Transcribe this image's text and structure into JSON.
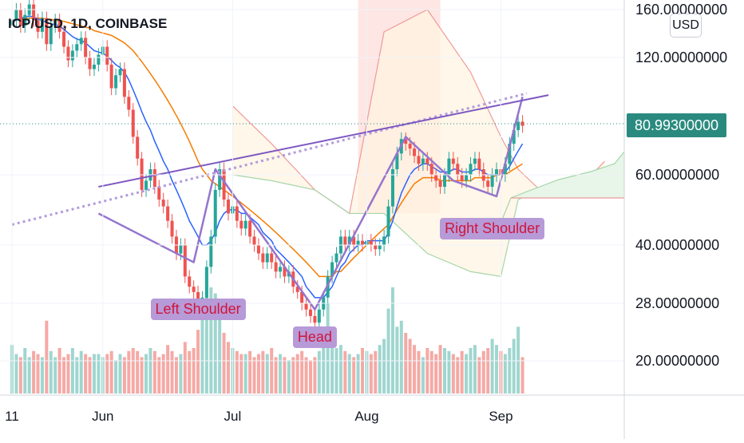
{
  "header": {
    "title": "ICP/USD, 1D, COINBASE"
  },
  "currency_button": {
    "label": "USD"
  },
  "current_price": {
    "label": "80.99300000",
    "value": 80.993
  },
  "colors": {
    "up": "#26a69a",
    "down": "#ef5350",
    "ma_fast": "#2962ff",
    "ma_slow": "#f57c00",
    "pattern": "#9575cd",
    "neckline": "#7e57c2",
    "cloud_green": "#a5d6a7",
    "cloud_red": "#ef9a9a"
  },
  "chart_data": {
    "type": "candlestick",
    "yscale": "log",
    "ylim": [
      15,
      170
    ],
    "y_ticks": [
      {
        "value": 160,
        "label": "160.00000000"
      },
      {
        "value": 120,
        "label": "120.00000000"
      },
      {
        "value": 60,
        "label": "60.00000000"
      },
      {
        "value": 40,
        "label": "40.00000000"
      },
      {
        "value": 28,
        "label": "28.00000000"
      },
      {
        "value": 20,
        "label": "20.00000000"
      }
    ],
    "x_ticks": [
      "11",
      "Jun",
      "Jul",
      "Aug",
      "Sep"
    ],
    "candles": {
      "x": [
        "2021-05-11",
        "2021-05-12",
        "2021-05-13",
        "2021-05-14",
        "2021-05-15",
        "2021-05-16",
        "2021-05-17",
        "2021-05-18",
        "2021-05-19",
        "2021-05-20",
        "2021-05-21",
        "2021-05-22",
        "2021-05-23",
        "2021-05-24",
        "2021-05-25",
        "2021-05-26",
        "2021-05-27",
        "2021-05-28",
        "2021-05-29",
        "2021-05-30",
        "2021-05-31",
        "2021-06-01",
        "2021-06-02",
        "2021-06-03",
        "2021-06-04",
        "2021-06-05",
        "2021-06-06",
        "2021-06-07",
        "2021-06-08",
        "2021-06-09",
        "2021-06-10",
        "2021-06-11",
        "2021-06-12",
        "2021-06-13",
        "2021-06-14",
        "2021-06-15",
        "2021-06-16",
        "2021-06-17",
        "2021-06-18",
        "2021-06-19",
        "2021-06-20",
        "2021-06-21",
        "2021-06-22",
        "2021-06-23",
        "2021-06-24",
        "2021-06-25",
        "2021-06-26",
        "2021-06-27",
        "2021-06-28",
        "2021-06-29",
        "2021-06-30",
        "2021-07-01",
        "2021-07-02",
        "2021-07-03",
        "2021-07-04",
        "2021-07-05",
        "2021-07-06",
        "2021-07-07",
        "2021-07-08",
        "2021-07-09",
        "2021-07-10",
        "2021-07-11",
        "2021-07-12",
        "2021-07-13",
        "2021-07-14",
        "2021-07-15",
        "2021-07-16",
        "2021-07-17",
        "2021-07-18",
        "2021-07-19",
        "2021-07-20",
        "2021-07-21",
        "2021-07-22",
        "2021-07-23",
        "2021-07-24",
        "2021-07-25",
        "2021-07-26",
        "2021-07-27",
        "2021-07-28",
        "2021-07-29",
        "2021-07-30",
        "2021-07-31",
        "2021-08-01",
        "2021-08-02",
        "2021-08-03",
        "2021-08-04",
        "2021-08-05",
        "2021-08-06",
        "2021-08-07",
        "2021-08-08",
        "2021-08-09",
        "2021-08-10",
        "2021-08-11",
        "2021-08-12",
        "2021-08-13",
        "2021-08-14",
        "2021-08-15",
        "2021-08-16",
        "2021-08-17",
        "2021-08-18",
        "2021-08-19",
        "2021-08-20",
        "2021-08-21",
        "2021-08-22",
        "2021-08-23",
        "2021-08-24",
        "2021-08-25",
        "2021-08-26",
        "2021-08-27",
        "2021-08-28",
        "2021-08-29",
        "2021-08-30",
        "2021-08-31",
        "2021-09-01",
        "2021-09-02",
        "2021-09-03",
        "2021-09-04",
        "2021-09-05",
        "2021-09-06"
      ],
      "close": [
        150,
        160,
        145,
        155,
        165,
        150,
        140,
        152,
        130,
        145,
        150,
        140,
        128,
        118,
        125,
        130,
        135,
        120,
        112,
        115,
        122,
        128,
        115,
        100,
        108,
        112,
        95,
        88,
        75,
        66,
        55,
        58,
        62,
        56,
        52,
        50,
        46,
        42,
        38,
        40,
        33,
        31,
        30,
        28,
        29,
        35,
        42,
        55,
        62,
        52,
        48,
        50,
        46,
        44,
        46,
        42,
        40,
        38,
        36,
        38,
        36,
        34,
        35,
        33,
        34,
        31,
        30,
        28,
        27,
        26,
        25,
        27,
        29,
        33,
        36,
        38,
        42,
        40,
        42,
        40,
        41,
        40,
        41,
        40,
        39,
        40,
        42,
        50,
        62,
        68,
        74,
        72,
        70,
        67,
        64,
        66,
        64,
        60,
        58,
        56,
        60,
        66,
        64,
        60,
        58,
        60,
        64,
        66,
        62,
        58,
        56,
        60,
        62,
        60,
        64,
        72,
        78,
        82,
        80
      ],
      "volume": [
        16,
        13,
        12,
        15,
        12,
        14,
        13,
        12,
        24,
        14,
        12,
        15,
        12,
        13,
        15,
        12,
        14,
        13,
        12,
        13,
        13,
        12,
        13,
        14,
        11,
        13,
        12,
        14,
        15,
        14,
        12,
        13,
        15,
        14,
        12,
        13,
        16,
        14,
        12,
        13,
        17,
        14,
        15,
        21,
        30,
        32,
        35,
        33,
        26,
        20,
        17,
        15,
        14,
        13,
        13,
        14,
        12,
        13,
        14,
        13,
        15,
        12,
        13,
        12,
        11,
        12,
        13,
        14,
        12,
        11,
        12,
        14,
        20,
        30,
        18,
        15,
        16,
        14,
        13,
        12,
        13,
        15,
        14,
        13,
        14,
        16,
        18,
        28,
        35,
        22,
        24,
        20,
        18,
        16,
        14,
        12,
        15,
        14,
        13,
        16,
        15,
        14,
        13,
        12,
        14,
        13,
        15,
        16,
        12,
        14,
        15,
        18,
        16,
        14,
        13,
        15,
        18,
        22,
        12
      ]
    },
    "ma_fast": [
      150,
      150,
      152,
      153,
      154,
      153,
      151,
      150,
      148,
      147,
      146,
      145,
      142,
      139,
      136,
      134,
      133,
      131,
      128,
      125,
      124,
      123,
      121,
      118,
      115,
      113,
      110,
      105,
      99,
      93,
      87,
      82,
      78,
      73,
      69,
      65,
      62,
      58,
      55,
      52,
      49,
      46,
      44,
      42,
      40,
      40,
      41,
      43,
      46,
      48,
      49,
      49,
      49,
      48,
      48,
      47,
      46,
      45,
      43,
      42,
      41,
      39,
      38,
      37,
      36,
      35,
      34,
      33,
      31,
      30,
      29,
      29,
      29,
      30,
      31,
      33,
      35,
      36,
      38,
      39,
      40,
      40,
      41,
      41,
      41,
      41,
      41,
      43,
      46,
      50,
      54,
      57,
      60,
      62,
      63,
      64,
      64,
      63,
      62,
      61,
      61,
      61,
      62,
      62,
      61,
      61,
      61,
      62,
      62,
      61,
      60,
      60,
      60,
      60,
      61,
      63,
      66,
      69,
      72
    ],
    "ma_slow": [
      150,
      151,
      151,
      152,
      152,
      152,
      152,
      152,
      151,
      151,
      150,
      150,
      149,
      148,
      147,
      146,
      145,
      144,
      143,
      141,
      140,
      139,
      138,
      137,
      135,
      133,
      131,
      128,
      125,
      121,
      117,
      113,
      109,
      105,
      101,
      97,
      93,
      89,
      85,
      81,
      77,
      73,
      69,
      65,
      62,
      60,
      58,
      57,
      56,
      55,
      54,
      53,
      52,
      51,
      50,
      49,
      48,
      47,
      46,
      45,
      44,
      43,
      42,
      41,
      40,
      39,
      38,
      37,
      36,
      35,
      34,
      33,
      33,
      33,
      33,
      34,
      34,
      35,
      36,
      37,
      38,
      39,
      40,
      41,
      42,
      43,
      44,
      45,
      47,
      49,
      51,
      53,
      55,
      57,
      58,
      59,
      59,
      59,
      59,
      58,
      58,
      58,
      58,
      58,
      58,
      58,
      58,
      59,
      59,
      59,
      59,
      59,
      60,
      60,
      60,
      61,
      62,
      63,
      64
    ],
    "pattern": {
      "points": [
        {
          "x": "2021-05-31",
          "y": 48
        },
        {
          "x": "2021-06-22",
          "y": 36
        },
        {
          "x": "2021-06-27",
          "y": 62
        },
        {
          "x": "2021-07-20",
          "y": 27
        },
        {
          "x": "2021-08-10",
          "y": 75
        },
        {
          "x": "2021-08-21",
          "y": 58
        },
        {
          "x": "2021-08-31",
          "y": 53
        },
        {
          "x": "2021-09-06",
          "y": 95
        }
      ],
      "labels": [
        {
          "text": "Left Shoulder",
          "x": "2021-06-23",
          "y": 27
        },
        {
          "text": "Head",
          "x": "2021-07-20",
          "y": 23
        },
        {
          "text": "Right Shoulder",
          "x": "2021-08-30",
          "y": 44
        }
      ]
    },
    "neckline": {
      "solid": [
        {
          "x": "2021-05-31",
          "y": 56
        },
        {
          "x": "2021-09-12",
          "y": 96
        }
      ],
      "dotted": [
        {
          "x": "2021-05-11",
          "y": 45
        },
        {
          "x": "2021-09-07",
          "y": 97
        }
      ]
    },
    "cloud": {
      "x": [
        "2021-07-01",
        "2021-07-10",
        "2021-07-20",
        "2021-07-28",
        "2021-08-05",
        "2021-08-15",
        "2021-08-25",
        "2021-09-01",
        "2021-09-05",
        "2021-09-10",
        "2021-09-20",
        "2021-09-25"
      ],
      "upper": [
        90,
        72,
        55,
        48,
        140,
        160,
        110,
        75,
        62,
        55,
        57,
        65
      ],
      "lower": [
        60,
        58,
        55,
        48,
        48,
        38,
        34,
        33,
        52,
        55,
        55,
        55
      ]
    }
  }
}
